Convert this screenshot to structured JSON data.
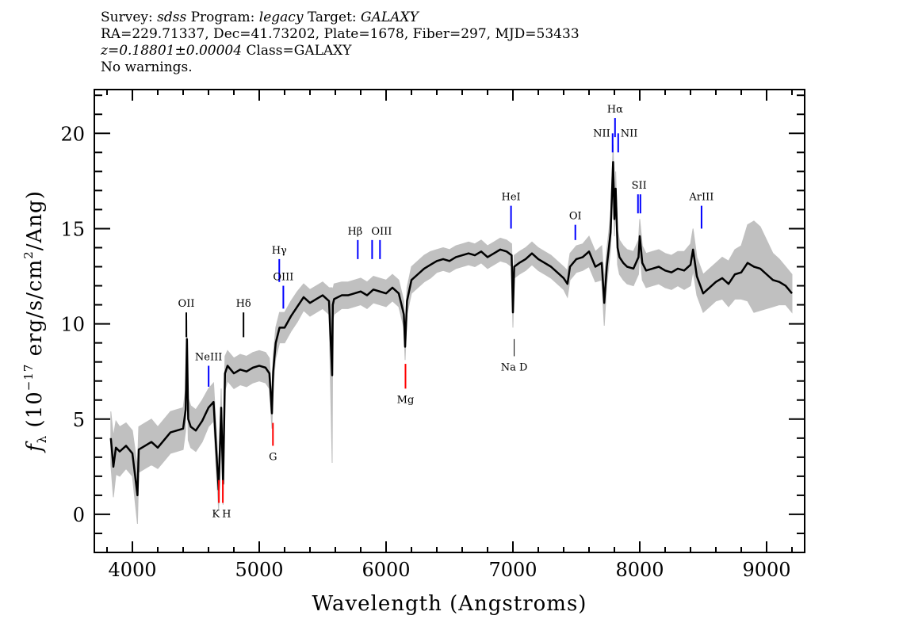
{
  "header": {
    "line1": {
      "survey_label": "Survey:",
      "survey": "sdss",
      "program_label": "Program:",
      "program": "legacy",
      "target_label": "Target:",
      "target": "GALAXY"
    },
    "line2": "RA=229.71337, Dec=41.73202, Plate=1678, Fiber=297, MJD=53433",
    "line3": {
      "z": "z=0.18801±0.00004",
      "class": "Class=GALAXY"
    },
    "line4": "No warnings."
  },
  "chart_data": {
    "type": "line",
    "xlabel": "Wavelength (Angstroms)",
    "ylabel": "f_λ (10^-17 erg/s/cm^2/Ang)",
    "ylabel_parts": {
      "f": "f",
      "sub": "λ",
      "pre": " (10",
      "sup1": "−17",
      "mid": " erg/s/cm",
      "sup2": "2",
      "post": "/Ang)"
    },
    "xlim": [
      3700,
      9300
    ],
    "ylim": [
      -2,
      22.3
    ],
    "xticks": [
      4000,
      5000,
      6000,
      7000,
      8000,
      9000
    ],
    "yticks": [
      0,
      5,
      10,
      15,
      20
    ],
    "colors": {
      "smoothed": "#000000",
      "raw": "#c0c0c0",
      "emission": "#0000ff",
      "absorption": "#ff0000",
      "sky": "#000000"
    },
    "series": {
      "x": [
        3830,
        3850,
        3870,
        3900,
        3950,
        4000,
        4040,
        4050,
        4100,
        4150,
        4200,
        4250,
        4300,
        4350,
        4400,
        4420,
        4430,
        4440,
        4460,
        4500,
        4550,
        4600,
        4640,
        4660,
        4680,
        4700,
        4715,
        4730,
        4750,
        4800,
        4850,
        4900,
        4950,
        5000,
        5050,
        5080,
        5100,
        5110,
        5130,
        5160,
        5200,
        5250,
        5300,
        5350,
        5400,
        5450,
        5500,
        5550,
        5575,
        5580,
        5590,
        5650,
        5700,
        5750,
        5800,
        5850,
        5900,
        5950,
        6000,
        6050,
        6100,
        6140,
        6150,
        6165,
        6200,
        6250,
        6300,
        6350,
        6400,
        6450,
        6500,
        6550,
        6600,
        6650,
        6700,
        6750,
        6800,
        6850,
        6900,
        6950,
        6990,
        7000,
        7010,
        7050,
        7100,
        7150,
        7200,
        7250,
        7300,
        7350,
        7400,
        7430,
        7450,
        7500,
        7550,
        7600,
        7650,
        7700,
        7720,
        7740,
        7770,
        7790,
        7800,
        7810,
        7825,
        7840,
        7870,
        7900,
        7950,
        7990,
        8000,
        8020,
        8050,
        8100,
        8150,
        8200,
        8250,
        8300,
        8350,
        8400,
        8420,
        8450,
        8500,
        8550,
        8600,
        8650,
        8700,
        8750,
        8800,
        8850,
        8900,
        8950,
        9000,
        9050,
        9100,
        9150,
        9200
      ],
      "flux": [
        4.0,
        2.5,
        3.5,
        3.3,
        3.6,
        3.2,
        1.0,
        3.4,
        3.6,
        3.8,
        3.5,
        3.9,
        4.3,
        4.4,
        4.5,
        5.5,
        9.2,
        5.0,
        4.6,
        4.4,
        4.9,
        5.6,
        5.9,
        3.5,
        1.3,
        5.6,
        1.6,
        7.4,
        7.8,
        7.4,
        7.6,
        7.5,
        7.7,
        7.8,
        7.7,
        7.4,
        5.3,
        7.5,
        9.0,
        9.8,
        9.8,
        10.4,
        10.9,
        11.4,
        11.1,
        11.3,
        11.5,
        11.2,
        7.3,
        11.0,
        11.3,
        11.5,
        11.5,
        11.6,
        11.7,
        11.5,
        11.8,
        11.7,
        11.6,
        11.9,
        11.6,
        10.5,
        8.8,
        11.2,
        12.3,
        12.6,
        12.9,
        13.1,
        13.3,
        13.4,
        13.3,
        13.5,
        13.6,
        13.7,
        13.6,
        13.8,
        13.5,
        13.7,
        13.9,
        13.8,
        13.6,
        10.6,
        13.0,
        13.2,
        13.4,
        13.7,
        13.4,
        13.2,
        13.0,
        12.7,
        12.4,
        12.1,
        13.0,
        13.4,
        13.5,
        13.8,
        13.0,
        13.2,
        11.1,
        13.0,
        14.8,
        18.5,
        15.5,
        17.1,
        14.0,
        13.5,
        13.2,
        13.0,
        12.9,
        13.5,
        14.6,
        13.2,
        12.8,
        12.9,
        13.0,
        12.8,
        12.7,
        12.9,
        12.8,
        13.1,
        13.9,
        12.5,
        11.6,
        11.9,
        12.2,
        12.4,
        12.1,
        12.6,
        12.7,
        13.2,
        13.0,
        12.9,
        12.6,
        12.3,
        12.2,
        12.0,
        11.6
      ],
      "raw_halfwidth": [
        1.4,
        1.6,
        1.4,
        1.3,
        1.2,
        1.2,
        1.5,
        1.2,
        1.2,
        1.2,
        1.1,
        1.1,
        1.1,
        1.1,
        1.1,
        1.1,
        1.0,
        1.1,
        1.1,
        1.1,
        1.1,
        1.0,
        1.0,
        1.1,
        1.1,
        1.0,
        1.1,
        0.9,
        0.8,
        0.8,
        0.8,
        0.8,
        0.8,
        0.8,
        0.8,
        0.8,
        0.8,
        0.8,
        0.8,
        0.8,
        0.8,
        0.8,
        0.8,
        0.7,
        0.7,
        0.7,
        0.7,
        0.7,
        4.6,
        0.8,
        0.8,
        0.7,
        0.7,
        0.7,
        0.7,
        0.7,
        0.7,
        0.7,
        0.7,
        0.7,
        0.7,
        0.7,
        0.7,
        0.7,
        0.7,
        0.7,
        0.7,
        0.7,
        0.6,
        0.6,
        0.6,
        0.6,
        0.6,
        0.6,
        0.6,
        0.6,
        0.6,
        0.6,
        0.6,
        0.6,
        0.6,
        0.8,
        0.6,
        0.6,
        0.6,
        0.6,
        0.6,
        0.6,
        0.6,
        0.6,
        0.6,
        0.7,
        0.7,
        0.7,
        0.7,
        0.8,
        0.8,
        0.9,
        1.2,
        0.9,
        0.9,
        0.9,
        0.9,
        0.9,
        0.9,
        0.9,
        0.9,
        0.9,
        0.9,
        0.9,
        0.9,
        0.9,
        0.9,
        0.9,
        0.9,
        0.9,
        0.9,
        0.9,
        1.0,
        1.1,
        1.1,
        1.0,
        1.0,
        1.0,
        1.0,
        1.1,
        1.2,
        1.3,
        1.4,
        2.0,
        2.4,
        2.2,
        1.8,
        1.4,
        1.2,
        1.0,
        1.0
      ]
    },
    "lines": [
      {
        "label": "OII",
        "wl": 4425,
        "kind": "emission_black",
        "y1": 10.6,
        "y2": 9.3
      },
      {
        "label": "NeIII",
        "wl": 4601,
        "kind": "emission",
        "y1": 7.8,
        "y2": 6.7
      },
      {
        "label": "Hδ",
        "wl": 4876,
        "kind": "emission_black",
        "y1": 10.6,
        "y2": 9.3
      },
      {
        "label": "Hγ",
        "wl": 5158,
        "kind": "emission",
        "y1": 13.4,
        "y2": 12.2
      },
      {
        "label": "OIII",
        "wl": 5190,
        "kind": "emission",
        "y1": 12.0,
        "y2": 10.8
      },
      {
        "label": "Hβ",
        "wl": 5777,
        "kind": "emission",
        "y1": 14.4,
        "y2": 13.4
      },
      {
        "label": "OIII",
        "wl": 5921,
        "kind": "emission_pair",
        "pair": [
          5890,
          5952
        ],
        "y1": 14.4,
        "y2": 13.4
      },
      {
        "label": "HeI",
        "wl": 6985,
        "kind": "emission",
        "y1": 16.2,
        "y2": 15.0
      },
      {
        "label": "OI",
        "wl": 7492,
        "kind": "emission",
        "y1": 15.2,
        "y2": 14.4
      },
      {
        "label": "NII",
        "wl": 7786,
        "kind": "emission",
        "y1": 20.0,
        "y2": 19.0,
        "anchor": "end"
      },
      {
        "label": "Hα",
        "wl": 7805,
        "kind": "emission",
        "y1": 20.8,
        "y2": 19.8
      },
      {
        "label": "NII",
        "wl": 7830,
        "kind": "emission",
        "y1": 20.0,
        "y2": 19.0,
        "anchor": "start"
      },
      {
        "label": "SII",
        "wl": 7995,
        "kind": "emission_pair",
        "pair": [
          7986,
          8005
        ],
        "y1": 16.8,
        "y2": 15.8
      },
      {
        "label": "ArIII",
        "wl": 8487,
        "kind": "emission",
        "y1": 16.2,
        "y2": 15.0
      },
      {
        "label": "K",
        "wl": 4682,
        "kind": "absorption",
        "y1": 1.8,
        "y2": 0.6
      },
      {
        "label": "H",
        "wl": 4713,
        "kind": "absorption",
        "y1": 1.8,
        "y2": 0.6
      },
      {
        "label": "G",
        "wl": 5108,
        "kind": "absorption",
        "y1": 4.8,
        "y2": 3.6
      },
      {
        "label": "Mg",
        "wl": 6153,
        "kind": "absorption",
        "y1": 7.9,
        "y2": 6.6
      },
      {
        "label": "Na D",
        "wl": 7010,
        "kind": "absorption_gray",
        "y1": 9.2,
        "y2": 8.3
      }
    ]
  }
}
